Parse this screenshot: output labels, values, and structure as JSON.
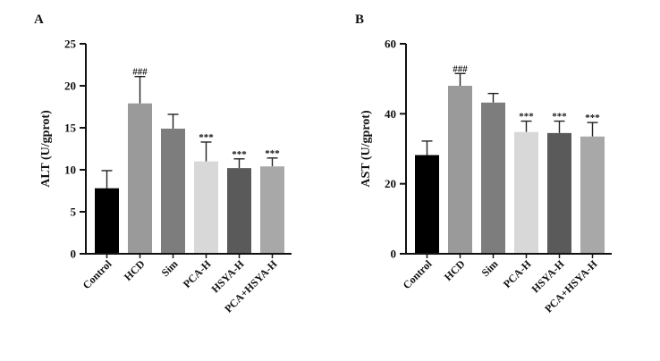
{
  "chart_data": [
    {
      "type": "bar",
      "panel": "A",
      "ylabel": "ALT (U/gprot)",
      "ylim": [
        0,
        25
      ],
      "yticks": [
        0,
        5,
        10,
        15,
        20,
        25
      ],
      "categories": [
        "Control",
        "HCD",
        "Sim",
        "PCA-H",
        "HSYA-H",
        "PCA+HSYA-H"
      ],
      "values": [
        7.8,
        17.9,
        14.9,
        11.0,
        10.2,
        10.4
      ],
      "errors": [
        2.1,
        3.2,
        1.7,
        2.3,
        1.1,
        1.0
      ],
      "annotations": [
        "",
        "###",
        "",
        "***",
        "***",
        "***"
      ],
      "colors": [
        "#000000",
        "#9a9a9a",
        "#7d7d7d",
        "#d8d8d8",
        "#5a5a5a",
        "#a8a8a8"
      ]
    },
    {
      "type": "bar",
      "panel": "B",
      "ylabel": "AST (U/gprot)",
      "ylim": [
        0,
        60
      ],
      "yticks": [
        0,
        20,
        40,
        60
      ],
      "categories": [
        "Control",
        "HCD",
        "Sim",
        "PCA-H",
        "HSYA-H",
        "PCA+HSYA-H"
      ],
      "values": [
        28.2,
        48.0,
        43.2,
        34.8,
        34.5,
        33.5
      ],
      "errors": [
        4.0,
        3.5,
        2.6,
        3.1,
        3.4,
        4.0
      ],
      "annotations": [
        "",
        "###",
        "",
        "***",
        "***",
        "***"
      ],
      "colors": [
        "#000000",
        "#9a9a9a",
        "#7d7d7d",
        "#d8d8d8",
        "#5a5a5a",
        "#a8a8a8"
      ]
    }
  ]
}
